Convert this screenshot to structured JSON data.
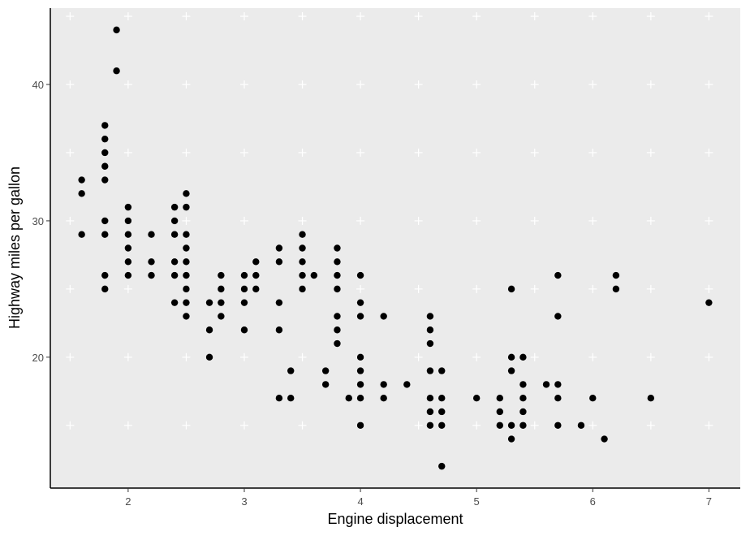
{
  "chart_data": {
    "type": "scatter",
    "xlabel": "Engine displacement",
    "ylabel": "Highway miles per gallon",
    "xlim": [
      1.33,
      7.27
    ],
    "ylim": [
      10.4,
      45.6
    ],
    "x_ticks": [
      2,
      3,
      4,
      5,
      6,
      7
    ],
    "x_tick_labels": [
      "2",
      "3",
      "4",
      "5",
      "6",
      "7"
    ],
    "y_ticks": [
      20,
      30,
      40
    ],
    "y_tick_labels": [
      "20",
      "30",
      "40"
    ],
    "grid": "major and minor crosses (white)",
    "panel_background": "#ebebeb",
    "point_color": "#000000",
    "points": [
      [
        1.6,
        33
      ],
      [
        1.6,
        32
      ],
      [
        1.6,
        29
      ],
      [
        1.8,
        37
      ],
      [
        1.8,
        36
      ],
      [
        1.8,
        35
      ],
      [
        1.8,
        34
      ],
      [
        1.8,
        33
      ],
      [
        1.8,
        30
      ],
      [
        1.8,
        29
      ],
      [
        1.8,
        26
      ],
      [
        1.8,
        25
      ],
      [
        1.9,
        44
      ],
      [
        1.9,
        41
      ],
      [
        2.0,
        31
      ],
      [
        2.0,
        30
      ],
      [
        2.0,
        29
      ],
      [
        2.0,
        28
      ],
      [
        2.0,
        27
      ],
      [
        2.0,
        26
      ],
      [
        2.2,
        29
      ],
      [
        2.2,
        27
      ],
      [
        2.2,
        26
      ],
      [
        2.4,
        31
      ],
      [
        2.4,
        30
      ],
      [
        2.4,
        29
      ],
      [
        2.4,
        27
      ],
      [
        2.4,
        26
      ],
      [
        2.4,
        24
      ],
      [
        2.5,
        32
      ],
      [
        2.5,
        31
      ],
      [
        2.5,
        29
      ],
      [
        2.5,
        28
      ],
      [
        2.5,
        27
      ],
      [
        2.5,
        26
      ],
      [
        2.5,
        25
      ],
      [
        2.5,
        24
      ],
      [
        2.5,
        23
      ],
      [
        2.7,
        24
      ],
      [
        2.7,
        22
      ],
      [
        2.7,
        20
      ],
      [
        2.8,
        26
      ],
      [
        2.8,
        25
      ],
      [
        2.8,
        24
      ],
      [
        2.8,
        23
      ],
      [
        3.0,
        26
      ],
      [
        3.0,
        25
      ],
      [
        3.0,
        24
      ],
      [
        3.0,
        22
      ],
      [
        3.1,
        27
      ],
      [
        3.1,
        26
      ],
      [
        3.1,
        25
      ],
      [
        3.3,
        28
      ],
      [
        3.3,
        27
      ],
      [
        3.3,
        24
      ],
      [
        3.3,
        22
      ],
      [
        3.3,
        17
      ],
      [
        3.4,
        19
      ],
      [
        3.4,
        17
      ],
      [
        3.5,
        29
      ],
      [
        3.5,
        28
      ],
      [
        3.5,
        27
      ],
      [
        3.5,
        26
      ],
      [
        3.5,
        25
      ],
      [
        3.6,
        26
      ],
      [
        3.7,
        19
      ],
      [
        3.7,
        18
      ],
      [
        3.8,
        28
      ],
      [
        3.8,
        27
      ],
      [
        3.8,
        26
      ],
      [
        3.8,
        25
      ],
      [
        3.8,
        23
      ],
      [
        3.8,
        22
      ],
      [
        3.8,
        21
      ],
      [
        3.9,
        17
      ],
      [
        4.0,
        26
      ],
      [
        4.0,
        24
      ],
      [
        4.0,
        23
      ],
      [
        4.0,
        20
      ],
      [
        4.0,
        19
      ],
      [
        4.0,
        18
      ],
      [
        4.0,
        17
      ],
      [
        4.0,
        15
      ],
      [
        4.2,
        23
      ],
      [
        4.2,
        18
      ],
      [
        4.2,
        17
      ],
      [
        4.4,
        18
      ],
      [
        4.6,
        23
      ],
      [
        4.6,
        22
      ],
      [
        4.6,
        21
      ],
      [
        4.6,
        19
      ],
      [
        4.6,
        17
      ],
      [
        4.6,
        16
      ],
      [
        4.6,
        15
      ],
      [
        4.7,
        19
      ],
      [
        4.7,
        17
      ],
      [
        4.7,
        16
      ],
      [
        4.7,
        15
      ],
      [
        4.7,
        12
      ],
      [
        5.0,
        17
      ],
      [
        5.2,
        17
      ],
      [
        5.2,
        16
      ],
      [
        5.2,
        15
      ],
      [
        5.3,
        25
      ],
      [
        5.3,
        20
      ],
      [
        5.3,
        19
      ],
      [
        5.3,
        15
      ],
      [
        5.3,
        14
      ],
      [
        5.4,
        20
      ],
      [
        5.4,
        18
      ],
      [
        5.4,
        17
      ],
      [
        5.4,
        16
      ],
      [
        5.4,
        15
      ],
      [
        5.6,
        18
      ],
      [
        5.7,
        26
      ],
      [
        5.7,
        23
      ],
      [
        5.7,
        18
      ],
      [
        5.7,
        17
      ],
      [
        5.7,
        15
      ],
      [
        5.9,
        15
      ],
      [
        6.0,
        17
      ],
      [
        6.1,
        14
      ],
      [
        6.2,
        26
      ],
      [
        6.2,
        25
      ],
      [
        6.5,
        17
      ],
      [
        7.0,
        24
      ]
    ]
  }
}
